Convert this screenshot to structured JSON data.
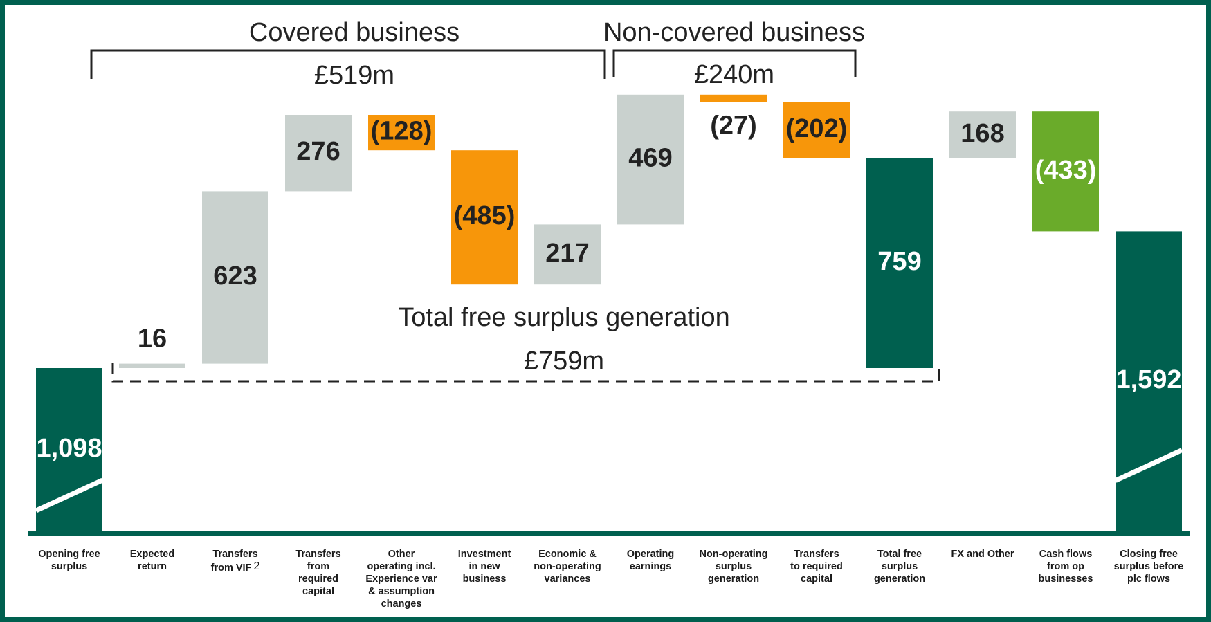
{
  "chart_data": {
    "type": "waterfall",
    "categories": [
      "Opening free\nsurplus",
      "Expected\nreturn",
      "Transfers\nfrom VIF",
      "Transfers\nfrom\nrequired\ncapital",
      "Other\noperating incl.\nExperience var\n& assumption\nchanges",
      "Investment\nin new\nbusiness",
      "Economic &\nnon-operating\nvariances",
      "Operating\nearnings",
      "Non-operating\nsurplus\ngeneration",
      "Transfers\nto required\ncapital",
      "Total free\nsurplus\ngeneration",
      "FX and Other",
      "Cash flows\nfrom op\nbusinesses",
      "Closing free\nsurplus before\nplc flows"
    ],
    "category_notes": [
      null,
      null,
      "2",
      null,
      null,
      null,
      null,
      null,
      null,
      null,
      null,
      null,
      null,
      null
    ],
    "values": [
      1098,
      16,
      623,
      276,
      -128,
      -485,
      217,
      469,
      -27,
      -202,
      759,
      168,
      -433,
      1592
    ],
    "value_labels": [
      "1,098",
      "16",
      "623",
      "276",
      "(128)",
      "(485)",
      "217",
      "469",
      "(27)",
      "(202)",
      "759",
      "168",
      "(433)",
      "1,592"
    ],
    "kinds": [
      "start",
      "delta",
      "delta",
      "delta",
      "delta",
      "delta",
      "delta",
      "delta",
      "delta",
      "delta",
      "subtotal",
      "delta",
      "delta",
      "end"
    ],
    "colors": [
      "#00604f",
      "#c9d1ce",
      "#c9d1ce",
      "#c9d1ce",
      "#f7960a",
      "#f7960a",
      "#c9d1ce",
      "#c9d1ce",
      "#f7960a",
      "#f7960a",
      "#00604f",
      "#c9d1ce",
      "#6aab2a",
      "#00604f"
    ],
    "annotations": {
      "covered_title": "Covered business",
      "covered_total": "£519m",
      "noncovered_title": "Non-covered business",
      "noncovered_total": "£240m",
      "generation_title": "Total free surplus generation",
      "generation_total": "£759m"
    }
  }
}
